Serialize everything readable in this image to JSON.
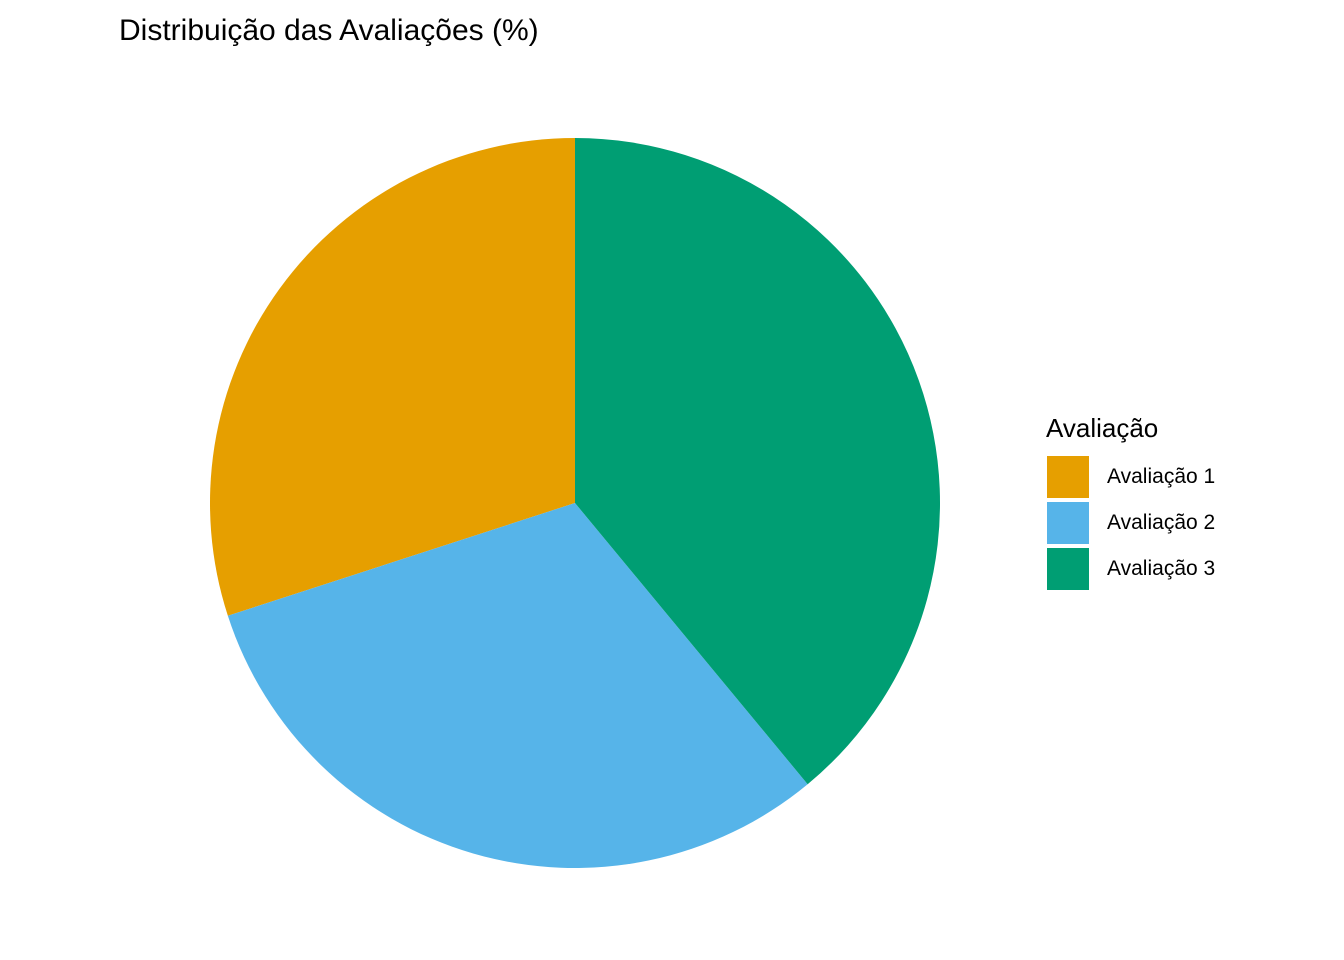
{
  "chart_data": {
    "type": "pie",
    "title": "Distribuição das Avaliações (%)",
    "legend_title": "Avaliação",
    "legend_position": "right",
    "start_angle": "12 o'clock",
    "direction": "counterclockwise",
    "categories": [
      "Avaliação 1",
      "Avaliação 2",
      "Avaliação 3"
    ],
    "values": [
      30.0,
      31.0,
      39.0
    ],
    "colors": [
      "#E69F00",
      "#56B4E9",
      "#009E73"
    ]
  }
}
